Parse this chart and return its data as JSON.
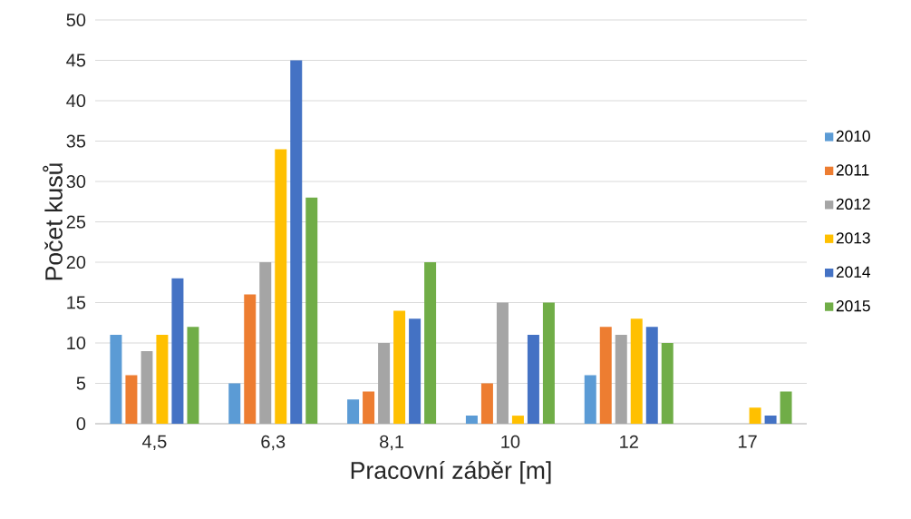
{
  "chart_data": {
    "type": "bar",
    "xlabel": "Pracovní záběr [m]",
    "ylabel": "Počet kusů",
    "categories": [
      "4,5",
      "6,3",
      "8,1",
      "10",
      "12",
      "17"
    ],
    "series": [
      {
        "name": "2010",
        "color": "#5b9bd5",
        "values": [
          11,
          5,
          3,
          1,
          6,
          0
        ]
      },
      {
        "name": "2011",
        "color": "#ed7d31",
        "values": [
          6,
          16,
          4,
          5,
          12,
          0
        ]
      },
      {
        "name": "2012",
        "color": "#a5a5a5",
        "values": [
          9,
          20,
          10,
          15,
          11,
          0
        ]
      },
      {
        "name": "2013",
        "color": "#ffc000",
        "values": [
          11,
          34,
          14,
          1,
          13,
          2
        ]
      },
      {
        "name": "2014",
        "color": "#4472c4",
        "values": [
          18,
          45,
          13,
          11,
          12,
          1
        ]
      },
      {
        "name": "2015",
        "color": "#70ad47",
        "values": [
          12,
          28,
          20,
          15,
          10,
          4
        ]
      }
    ],
    "ylim": [
      0,
      50
    ],
    "yticks": [
      0,
      5,
      10,
      15,
      20,
      25,
      30,
      35,
      40,
      45,
      50
    ],
    "grid": "y",
    "legend": "right"
  }
}
